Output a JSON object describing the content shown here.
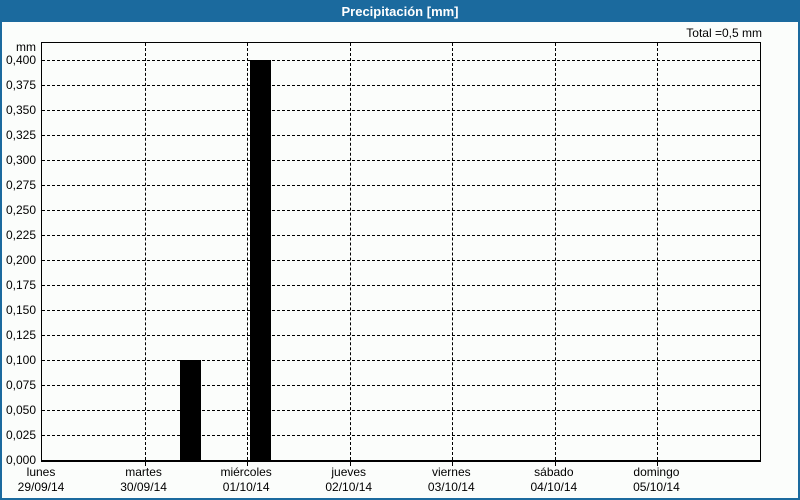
{
  "window": {
    "title": "Precipitación [mm]"
  },
  "summary": {
    "total_label": "Total =0,5 mm"
  },
  "chart_data": {
    "type": "bar",
    "title": "Precipitación [mm]",
    "unit_label": "mm",
    "total_mm": "0,5",
    "grid": "dashed",
    "legend": "none",
    "y_axis": {
      "min": 0,
      "max": 0.4,
      "step": 0.025,
      "tick_labels": [
        "0,400",
        "0,375",
        "0,350",
        "0,325",
        "0,300",
        "0,275",
        "0,250",
        "0,225",
        "0,200",
        "0,175",
        "0,150",
        "0,125",
        "0,100",
        "0,075",
        "0,050",
        "0,025",
        "0,000"
      ]
    },
    "x_axis": {
      "days": [
        {
          "name": "lunes",
          "date": "29/09/14"
        },
        {
          "name": "martes",
          "date": "30/09/14"
        },
        {
          "name": "miércoles",
          "date": "01/10/14"
        },
        {
          "name": "jueves",
          "date": "02/10/14"
        },
        {
          "name": "viernes",
          "date": "03/10/14"
        },
        {
          "name": "sábado",
          "date": "04/10/14"
        },
        {
          "name": "domingo",
          "date": "05/10/14"
        }
      ]
    },
    "bars": [
      {
        "day": "martes",
        "date": "30/09/14",
        "value": 0.1,
        "value_label": "0,100",
        "x_frac": 0.192,
        "w_frac": 0.029
      },
      {
        "day": "miércoles",
        "date": "01/10/14",
        "value": 0.4,
        "value_label": "0,400",
        "x_frac": 0.29,
        "w_frac": 0.029
      }
    ],
    "colors": {
      "bar": "#000000",
      "frame_blue": "#1B6A9E",
      "background": "#FBFDFB",
      "grid_line": "#000000"
    }
  }
}
